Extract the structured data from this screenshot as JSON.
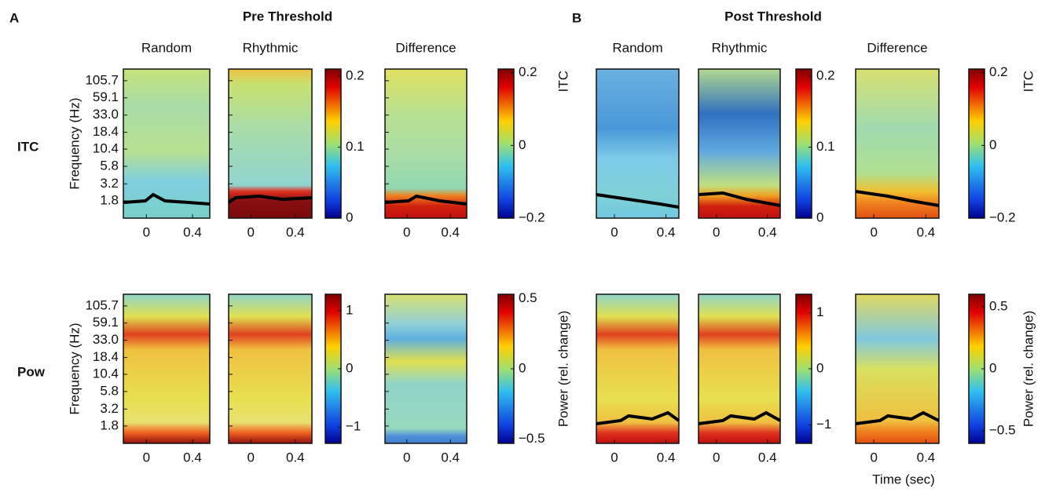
{
  "panels": [
    {
      "letter": "A",
      "title": "Pre Threshold",
      "columns": [
        "Random",
        "Rhythmic",
        "Difference"
      ],
      "y_label": "Frequency (Hz)",
      "yscale": "log",
      "ylim": [
        1,
        157
      ],
      "yticks": [
        105.7,
        59.1,
        {
          "value": 33,
          "label": "33.0"
        },
        18.4,
        10.4,
        5.8,
        3.2,
        1.8
      ],
      "xlim": [
        -0.2,
        0.55
      ],
      "xticks": [
        0,
        0.4
      ],
      "rows": [
        {
          "label": "ITC",
          "colorbars": [
            {
              "lim": [
                0,
                0.21
              ],
              "ticks": [
                0,
                0.1,
                0.2
              ]
            },
            {
              "lim": [
                -0.2,
                0.21
              ],
              "ticks": [
                {
                  "value": -0.2,
                  "label": "−0.2"
                },
                0,
                0.2
              ],
              "label": "ITC"
            }
          ]
        },
        {
          "label": "Pow",
          "colorbars": [
            {
              "lim": [
                -1.28,
                1.28
              ],
              "ticks": [
                {
                  "value": -1,
                  "label": "−1"
                },
                0,
                1
              ]
            },
            {
              "lim": [
                -0.53,
                0.53
              ],
              "ticks": [
                {
                  "value": -0.5,
                  "label": "−0.5"
                },
                0,
                0.5
              ],
              "label": "Power (rel. change)"
            }
          ]
        }
      ]
    },
    {
      "letter": "B",
      "title": "Post Threshold",
      "columns": [
        "Random",
        "Rhythmic",
        "Difference"
      ],
      "xlim": [
        -0.14,
        0.5
      ],
      "xticks": [
        0,
        0.4
      ],
      "x_label": "Time (sec)",
      "rows": [
        {
          "colorbars": [
            {
              "lim": [
                0,
                0.21
              ],
              "ticks": [
                0,
                0.1,
                0.2
              ]
            },
            {
              "lim": [
                -0.2,
                0.21
              ],
              "ticks": [
                {
                  "value": -0.2,
                  "label": "−0.2"
                },
                0,
                0.2
              ],
              "label": "ITC"
            }
          ]
        },
        {
          "colorbars": [
            {
              "lim": [
                -1.33,
                1.33
              ],
              "ticks": [
                {
                  "value": -1,
                  "label": "−1"
                },
                0,
                1
              ]
            },
            {
              "lim": [
                -0.6,
                0.6
              ],
              "ticks": [
                {
                  "value": -0.5,
                  "label": "−0.5"
                },
                0,
                0.5
              ],
              "label": "Power (rel. change)"
            }
          ]
        }
      ]
    }
  ]
}
